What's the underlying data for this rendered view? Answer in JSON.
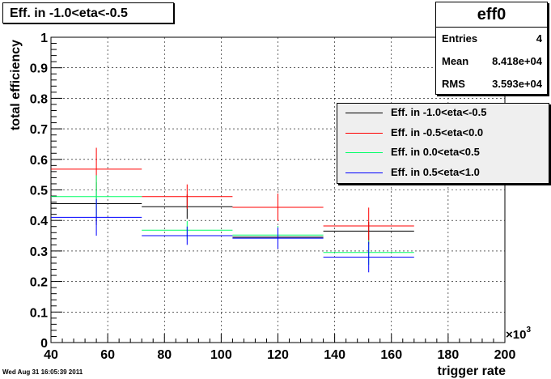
{
  "title_box": "Eff. in -1.0<eta<-0.5",
  "stats": {
    "name": "eff0",
    "rows": [
      {
        "label": "Entries",
        "value": "4"
      },
      {
        "label": "Mean",
        "value": "8.418e+04"
      },
      {
        "label": "RMS",
        "value": "3.593e+04"
      }
    ]
  },
  "timestamp": "Wed Aug 31 16:05:39 2011",
  "x_multiplier": "×10",
  "x_multiplier_exp": "3",
  "chart_data": {
    "type": "scatter",
    "title": "Eff. in -1.0<eta<-0.5",
    "xlabel": "trigger rate",
    "ylabel": "total efficiency",
    "xlim": [
      40,
      200
    ],
    "ylim": [
      0,
      1
    ],
    "x_ticks": [
      40,
      60,
      80,
      100,
      120,
      140,
      160,
      180,
      200
    ],
    "y_ticks": [
      0,
      0.1,
      0.2,
      0.3,
      0.4,
      0.5,
      0.6,
      0.7,
      0.8,
      0.9,
      1
    ],
    "grid": true,
    "legend_position": "right",
    "x_bins": [
      [
        40,
        72
      ],
      [
        72,
        104
      ],
      [
        104,
        136
      ],
      [
        136,
        168
      ]
    ],
    "series": [
      {
        "name": "Eff. in -1.0<eta<-0.5",
        "color": "#000000",
        "values": [
          0.455,
          0.445,
          0.345,
          0.365
        ],
        "errors": [
          0.07,
          0.04,
          0.035,
          0.03
        ]
      },
      {
        "name": "Eff. in -0.5<eta<0.0",
        "color": "#ff0000",
        "values": [
          0.568,
          0.478,
          0.443,
          0.382
        ],
        "errors": [
          0.07,
          0.04,
          0.045,
          0.06
        ]
      },
      {
        "name": "Eff. in 0.0<eta<0.5",
        "color": "#00ff66",
        "values": [
          0.478,
          0.368,
          0.352,
          0.295
        ],
        "errors": [
          0.07,
          0.03,
          0.03,
          0.04
        ]
      },
      {
        "name": "Eff. in 0.5<eta<1.0",
        "color": "#0000ff",
        "values": [
          0.41,
          0.35,
          0.342,
          0.28
        ],
        "errors": [
          0.06,
          0.03,
          0.035,
          0.05
        ]
      }
    ]
  }
}
